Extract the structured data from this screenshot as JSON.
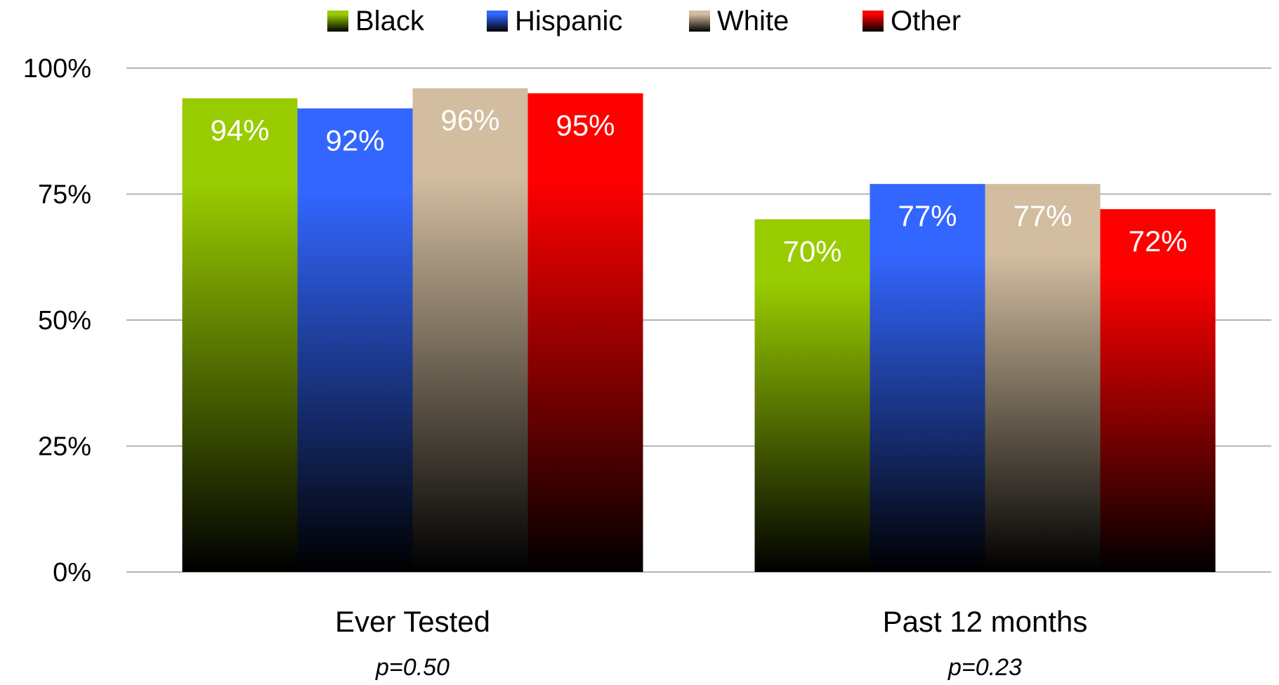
{
  "chart_data": {
    "type": "bar",
    "categories": [
      "Ever Tested",
      "Past 12 months"
    ],
    "category_notes": [
      "p=0.50",
      "p=0.23"
    ],
    "series": [
      {
        "name": "Black",
        "values": [
          94,
          70
        ],
        "color": "#99cc00"
      },
      {
        "name": "Hispanic",
        "values": [
          92,
          77
        ],
        "color": "#3366ff"
      },
      {
        "name": "White",
        "values": [
          96,
          77
        ],
        "color": "#d2bda0"
      },
      {
        "name": "Other",
        "values": [
          95,
          72
        ],
        "color": "#ff0000"
      }
    ],
    "data_labels": [
      [
        "94%",
        "70%"
      ],
      [
        "92%",
        "77%"
      ],
      [
        "96%",
        "77%"
      ],
      [
        "95%",
        "72%"
      ]
    ],
    "yticks": [
      {
        "value": 0,
        "label": "0%"
      },
      {
        "value": 25,
        "label": "25%"
      },
      {
        "value": 50,
        "label": "50%"
      },
      {
        "value": 75,
        "label": "75%"
      },
      {
        "value": 100,
        "label": "100%"
      }
    ],
    "ylim": [
      0,
      100
    ],
    "grid": true,
    "legend_position": "top",
    "bar_style": "vertical gradient from series color at top to black at bottom"
  }
}
